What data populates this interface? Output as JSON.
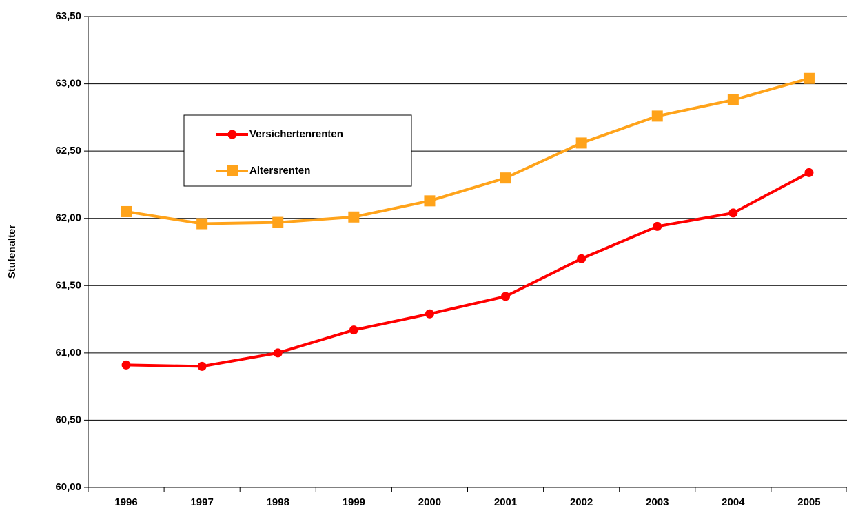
{
  "chart_data": {
    "type": "line",
    "y_label": "Stufenalter",
    "categories": [
      "1996",
      "1997",
      "1998",
      "1999",
      "2000",
      "2001",
      "2002",
      "2003",
      "2004",
      "2005"
    ],
    "series": [
      {
        "name": "Versichertenrenten",
        "color": "#ff0000",
        "marker": "circle",
        "values": [
          60.91,
          60.9,
          61.0,
          61.17,
          61.29,
          61.42,
          61.7,
          61.94,
          62.04,
          62.34
        ]
      },
      {
        "name": "Altersrenten",
        "color": "#ffa31a",
        "marker": "square",
        "values": [
          62.05,
          61.96,
          61.97,
          62.01,
          62.13,
          62.3,
          62.56,
          62.76,
          62.88,
          63.04
        ]
      }
    ],
    "ylim": [
      60,
      63.5
    ],
    "yticks": [
      {
        "value": 60,
        "label": "60,00"
      },
      {
        "value": 60.5,
        "label": "60,50"
      },
      {
        "value": 61,
        "label": "61,00"
      },
      {
        "value": 61.5,
        "label": "61,50"
      },
      {
        "value": 62,
        "label": "62,00"
      },
      {
        "value": 62.5,
        "label": "62,50"
      },
      {
        "value": 63,
        "label": "63,00"
      },
      {
        "value": 63.5,
        "label": "63,50"
      }
    ],
    "grid": true
  }
}
